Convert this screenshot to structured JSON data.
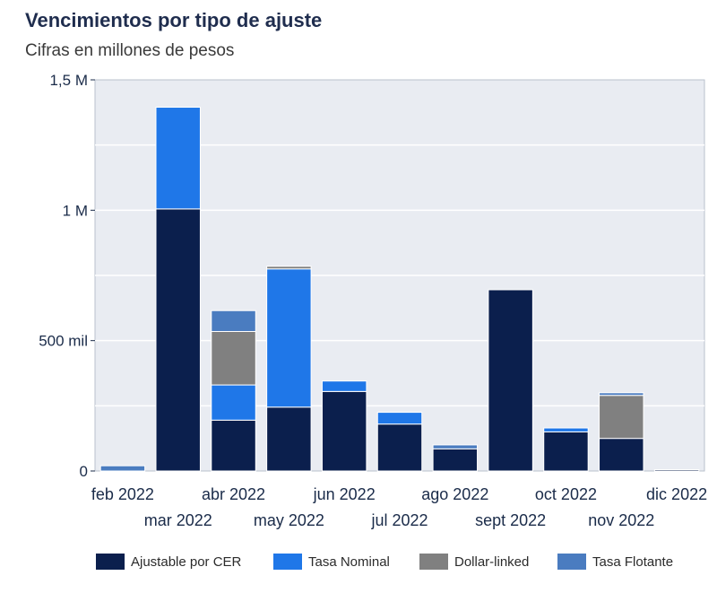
{
  "chart_data": {
    "type": "bar",
    "stacked": true,
    "title": "Vencimientos por tipo de ajuste",
    "subtitle": "Cifras en millones de pesos",
    "xlabel": "",
    "ylabel": "",
    "ylim": [
      0,
      1500000
    ],
    "grid": true,
    "legend_position": "bottom",
    "categories": [
      "feb 2022",
      "mar 2022",
      "abr 2022",
      "may 2022",
      "jun 2022",
      "jul 2022",
      "ago 2022",
      "sept 2022",
      "oct 2022",
      "nov 2022",
      "dic 2022"
    ],
    "y_ticks": [
      {
        "value": 0,
        "label": "0"
      },
      {
        "value": 500000,
        "label": "500 mil"
      },
      {
        "value": 1000000,
        "label": "1 M"
      },
      {
        "value": 1500000,
        "label": "1,5 M"
      }
    ],
    "series": [
      {
        "name": "Ajustable por CER",
        "color": "#0b1f4d",
        "values": [
          0,
          1005000,
          195000,
          245000,
          305000,
          180000,
          85000,
          695000,
          150000,
          125000,
          5000
        ]
      },
      {
        "name": "Tasa Nominal",
        "color": "#1f77e8",
        "values": [
          0,
          390000,
          135000,
          530000,
          40000,
          45000,
          0,
          0,
          15000,
          0,
          0
        ]
      },
      {
        "name": "Dollar-linked",
        "color": "#808080",
        "values": [
          0,
          0,
          205000,
          10000,
          0,
          0,
          0,
          0,
          0,
          165000,
          0
        ]
      },
      {
        "name": "Tasa Flotante",
        "color": "#4a7cc0",
        "values": [
          20000,
          0,
          80000,
          0,
          0,
          0,
          15000,
          0,
          0,
          10000,
          0
        ]
      }
    ]
  }
}
